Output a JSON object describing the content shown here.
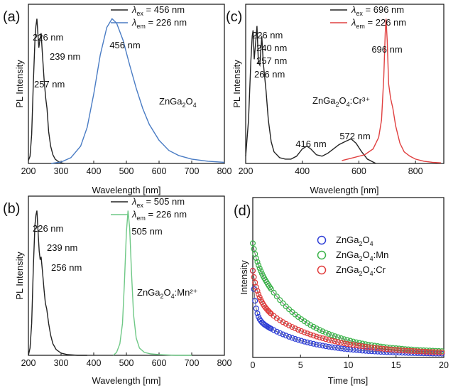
{
  "chart_data": [
    {
      "panel": "(a)",
      "type": "line",
      "xlabel": "Wavelength [nm]",
      "ylabel": "PL Intensity",
      "xlim": [
        200,
        800
      ],
      "ylim": [
        0,
        1.1
      ],
      "xticks": [
        "200",
        "300",
        "400",
        "500",
        "600",
        "700",
        "800"
      ],
      "legend": {
        "position": "top-right",
        "entries": [
          {
            "sym": "λ",
            "sub": "ex",
            "rest": " = 456 nm"
          },
          {
            "sym": "λ",
            "sub": "em",
            "rest": " = 226 nm"
          }
        ]
      },
      "sample": {
        "base": "ZnGa",
        "sub1": "2",
        "mid": "O",
        "sub2": "4",
        "sup": ""
      },
      "annotations": [
        "226 nm",
        "239 nm",
        "257 nm",
        "456 nm"
      ],
      "series": [
        {
          "color": "#222222",
          "x": [
            200,
            205,
            210,
            215,
            220,
            223,
            226,
            229,
            232,
            235,
            239,
            243,
            248,
            253,
            257,
            262,
            268,
            275,
            282,
            290,
            300,
            310
          ],
          "y": [
            0.02,
            0.05,
            0.2,
            0.55,
            0.85,
            0.95,
            1.0,
            0.9,
            0.8,
            0.85,
            0.9,
            0.75,
            0.58,
            0.45,
            0.38,
            0.22,
            0.12,
            0.06,
            0.03,
            0.015,
            0.005,
            0.0
          ]
        },
        {
          "color": "#4a7cc4",
          "x": [
            270,
            300,
            330,
            360,
            380,
            400,
            420,
            440,
            456,
            470,
            490,
            510,
            530,
            550,
            570,
            600,
            630,
            660,
            700,
            750,
            800
          ],
          "y": [
            0.0,
            0.01,
            0.04,
            0.12,
            0.25,
            0.48,
            0.75,
            0.94,
            1.0,
            0.97,
            0.85,
            0.68,
            0.52,
            0.38,
            0.27,
            0.16,
            0.09,
            0.055,
            0.03,
            0.015,
            0.008
          ]
        }
      ]
    },
    {
      "panel": "(b)",
      "type": "line",
      "xlabel": "Wavelength [nm]",
      "ylabel": "PL Intensity",
      "xlim": [
        200,
        800
      ],
      "ylim": [
        0,
        1.1
      ],
      "xticks": [
        "200",
        "300",
        "400",
        "500",
        "600",
        "700",
        "800"
      ],
      "legend": {
        "position": "top-right",
        "entries": [
          {
            "sym": "λ",
            "sub": "ex",
            "rest": " = 505 nm"
          },
          {
            "sym": "λ",
            "sub": "em",
            "rest": " = 226 nm"
          }
        ]
      },
      "sample": {
        "base": "ZnGa",
        "sub1": "2",
        "mid": "O",
        "sub2": "4",
        "sup": ":Mn²⁺"
      },
      "annotations": [
        "226 nm",
        "239 nm",
        "256 nm",
        "505 nm"
      ],
      "series": [
        {
          "color": "#222222",
          "x": [
            200,
            205,
            210,
            215,
            220,
            223,
            226,
            229,
            233,
            236,
            239,
            243,
            248,
            252,
            256,
            262,
            268,
            275,
            285,
            300,
            320,
            350,
            380
          ],
          "y": [
            0.0,
            0.05,
            0.22,
            0.6,
            0.9,
            0.97,
            1.0,
            0.88,
            0.72,
            0.66,
            0.68,
            0.58,
            0.45,
            0.36,
            0.32,
            0.22,
            0.14,
            0.08,
            0.04,
            0.015,
            0.005,
            0.0,
            0.0
          ]
        },
        {
          "color": "#6fc886",
          "x": [
            460,
            470,
            480,
            488,
            494,
            500,
            505,
            510,
            516,
            522,
            530,
            540,
            555,
            575,
            600,
            650,
            700
          ],
          "y": [
            0.0,
            0.02,
            0.08,
            0.22,
            0.5,
            0.85,
            1.0,
            0.88,
            0.55,
            0.28,
            0.12,
            0.05,
            0.02,
            0.01,
            0.005,
            0.0,
            0.0
          ]
        }
      ]
    },
    {
      "panel": "(c)",
      "type": "line",
      "xlabel": "Wavelength [nm]",
      "ylabel": "PL Intensity",
      "xlim": [
        200,
        900
      ],
      "ylim": [
        0,
        1.1
      ],
      "xticks": [
        "200",
        "400",
        "600",
        "800"
      ],
      "legend": {
        "position": "top-right",
        "entries": [
          {
            "sym": "λ",
            "sub": "ex",
            "rest": " = 696 nm"
          },
          {
            "sym": "λ",
            "sub": "em",
            "rest": " = 226 nm"
          }
        ]
      },
      "sample": {
        "base": "ZnGa",
        "sub1": "2",
        "mid": "O",
        "sub2": "4",
        "sup": ":Cr³⁺"
      },
      "annotations": [
        "226 nm",
        "240 nm",
        "257 nm",
        "266 nm",
        "416 nm",
        "572 nm",
        "696 nm"
      ],
      "series": [
        {
          "color": "#222222",
          "x": [
            200,
            210,
            218,
            223,
            226,
            230,
            236,
            240,
            245,
            250,
            257,
            262,
            266,
            272,
            280,
            290,
            300,
            320,
            340,
            360,
            380,
            400,
            416,
            430,
            450,
            470,
            490,
            510,
            530,
            550,
            572,
            590,
            610,
            630,
            650,
            660
          ],
          "y": [
            0.05,
            0.3,
            0.7,
            0.88,
            0.92,
            0.72,
            0.85,
            0.95,
            0.7,
            0.68,
            0.88,
            0.7,
            0.62,
            0.5,
            0.3,
            0.15,
            0.08,
            0.04,
            0.03,
            0.03,
            0.05,
            0.1,
            0.12,
            0.1,
            0.06,
            0.05,
            0.07,
            0.1,
            0.13,
            0.15,
            0.17,
            0.14,
            0.08,
            0.03,
            0.01,
            0.0
          ]
        },
        {
          "color": "#e04040",
          "x": [
            540,
            580,
            620,
            650,
            670,
            680,
            688,
            693,
            696,
            700,
            705,
            712,
            720,
            730,
            745,
            760,
            780,
            800,
            830,
            860,
            890
          ],
          "y": [
            0.02,
            0.04,
            0.06,
            0.1,
            0.18,
            0.3,
            0.6,
            0.9,
            1.0,
            0.85,
            0.55,
            0.45,
            0.38,
            0.26,
            0.14,
            0.08,
            0.05,
            0.03,
            0.015,
            0.008,
            0.004
          ]
        }
      ]
    },
    {
      "panel": "(d)",
      "type": "scatter",
      "xlabel": "Time [ms]",
      "ylabel": "Intensity",
      "xlim": [
        0,
        20
      ],
      "ylim": [
        0,
        1.05
      ],
      "xticks": [
        "0",
        "5",
        "10",
        "15",
        "20"
      ],
      "legend": {
        "position": "top-right",
        "entries": [
          {
            "base": "ZnGa",
            "sub1": "2",
            "mid": "O",
            "sub2": "4",
            "tail": ""
          },
          {
            "base": "ZnGa",
            "sub1": "2",
            "mid": "O",
            "sub2": "4",
            "tail": ":Mn"
          },
          {
            "base": "ZnGa",
            "sub1": "2",
            "mid": "O",
            "sub2": "4",
            "tail": ":Cr"
          }
        ]
      },
      "series": [
        {
          "color": "#2e3ed6",
          "amplitude": 0.55,
          "fast": 0.55,
          "fastTau": 0.25,
          "slowTau": 5.0,
          "base": 0.02
        },
        {
          "color": "#3bb34a",
          "amplitude": 0.72,
          "fast": 0.15,
          "fastTau": 0.5,
          "slowTau": 5.0,
          "base": 0.03
        },
        {
          "color": "#e03a3a",
          "amplitude": 0.55,
          "fast": 0.35,
          "fastTau": 0.6,
          "slowTau": 6.0,
          "base": 0.02
        }
      ]
    }
  ]
}
